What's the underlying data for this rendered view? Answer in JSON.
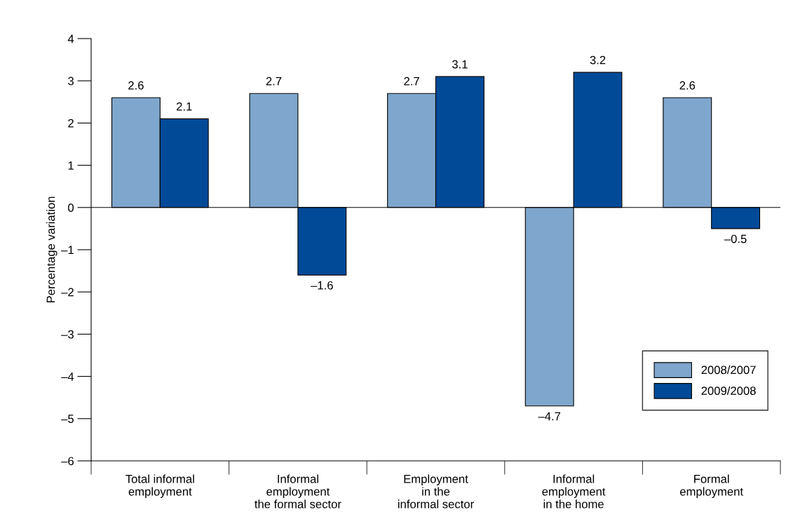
{
  "chart_data": {
    "type": "bar",
    "ylabel": "Percentage variation",
    "categories": [
      "Total informal\nemployment",
      "Informal\nemployment\nthe formal sector",
      "Employment\nin the\ninformal sector",
      "Informal\nemployment\nin the home",
      "Formal\nemployment"
    ],
    "series": [
      {
        "name": "2008/2007",
        "color": "#7fa6cc",
        "values": [
          2.6,
          2.7,
          2.7,
          -4.7,
          2.6
        ],
        "value_labels": [
          "2.6",
          "2.7",
          "2.7",
          "–4.7",
          "2.6"
        ]
      },
      {
        "name": "2009/2008",
        "color": "#004a98",
        "values": [
          2.1,
          -1.6,
          3.1,
          3.2,
          -0.5
        ],
        "value_labels": [
          "2.1",
          "–1.6",
          "3.1",
          "3.2",
          "–0.5"
        ]
      }
    ],
    "ylim": [
      -6,
      4
    ],
    "yticks": [
      {
        "value": -6,
        "label": "–6"
      },
      {
        "value": -5,
        "label": "–5"
      },
      {
        "value": -4,
        "label": "–4"
      },
      {
        "value": -3,
        "label": "–3"
      },
      {
        "value": -2,
        "label": "–2"
      },
      {
        "value": -1,
        "label": "–1"
      },
      0,
      1,
      2,
      3,
      4
    ],
    "ref_lines": [
      {
        "axis": "y",
        "value": 0,
        "color": "#000000"
      }
    ],
    "grid": false,
    "legend": "bottom right"
  }
}
